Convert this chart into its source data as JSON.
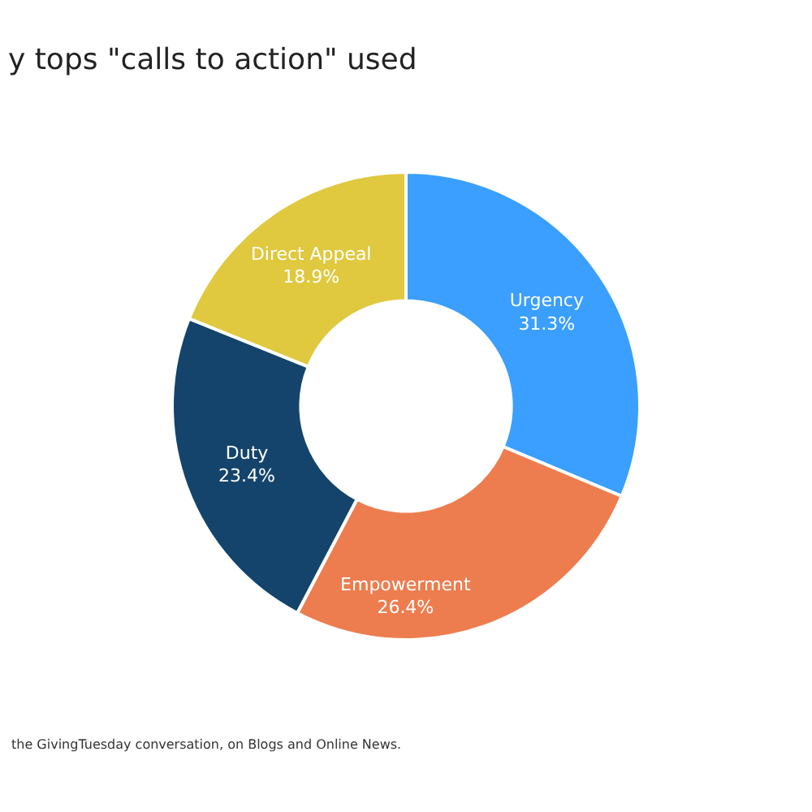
{
  "chart_data": {
    "type": "donut",
    "title": "y tops \"calls to action\" used",
    "categories": [
      "Urgency",
      "Empowerment",
      "Duty",
      "Direct Appeal"
    ],
    "values": [
      31.3,
      26.4,
      23.4,
      18.9
    ],
    "value_labels": [
      "31.3%",
      "26.4%",
      "23.4%",
      "18.9%"
    ],
    "colors": [
      "#3a9ffe",
      "#ed7d4f",
      "#14446c",
      "#e0c83f"
    ],
    "legend": false,
    "annotations": [
      "the GivingTuesday conversation, on Blogs and Online News."
    ]
  }
}
